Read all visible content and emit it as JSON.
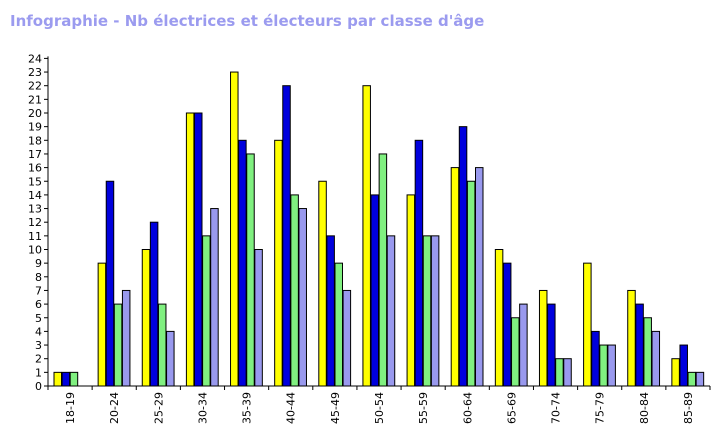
{
  "chart_data": {
    "type": "bar",
    "title": "Infographie - Nb électrices et électeurs par classe d'âge",
    "xlabel": "",
    "ylabel": "",
    "ylim": [
      0,
      24
    ],
    "y_ticks": [
      0,
      1,
      2,
      3,
      4,
      5,
      6,
      7,
      8,
      9,
      10,
      11,
      12,
      13,
      14,
      15,
      16,
      17,
      18,
      19,
      20,
      21,
      22,
      23,
      24
    ],
    "grid": false,
    "legend": "none",
    "categories": [
      "18-19",
      "20-24",
      "25-29",
      "30-34",
      "35-39",
      "40-44",
      "45-49",
      "50-54",
      "55-59",
      "60-64",
      "65-69",
      "70-74",
      "75-79",
      "80-84",
      "85-89"
    ],
    "series": [
      {
        "color": "#ffff00",
        "values": [
          1,
          9,
          10,
          20,
          23,
          18,
          15,
          22,
          14,
          16,
          10,
          7,
          9,
          7,
          2
        ]
      },
      {
        "color": "#0000dd",
        "values": [
          1,
          15,
          12,
          20,
          18,
          22,
          11,
          14,
          18,
          19,
          9,
          6,
          4,
          6,
          3
        ]
      },
      {
        "color": "#80f080",
        "values": [
          1,
          6,
          6,
          11,
          17,
          14,
          9,
          17,
          11,
          15,
          5,
          2,
          3,
          5,
          1
        ]
      },
      {
        "color": "#9999ee",
        "values": [
          0,
          7,
          4,
          13,
          10,
          13,
          7,
          11,
          11,
          16,
          6,
          2,
          3,
          4,
          1
        ]
      }
    ]
  }
}
